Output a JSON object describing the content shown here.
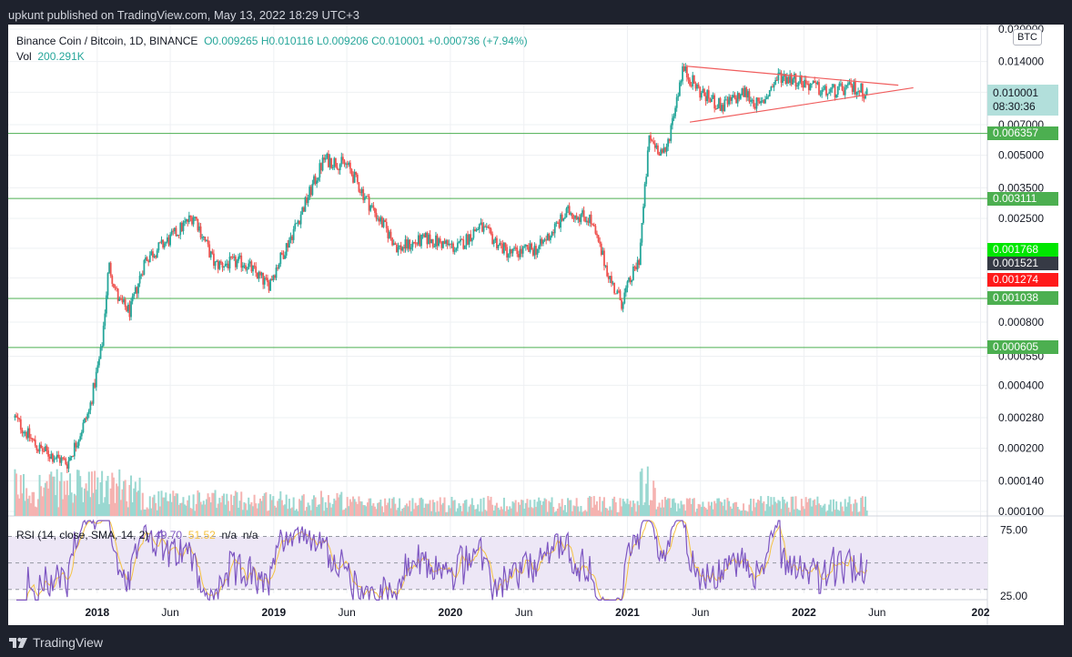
{
  "header": {
    "published_text": "upkunt published on TradingView.com, May 13, 2022 18:29 UTC+3"
  },
  "footer": {
    "brand": "TradingView"
  },
  "legend": {
    "symbol": "Binance Coin / Bitcoin, 1D, BINANCE",
    "open": "O0.009265",
    "high": "H0.010116",
    "low": "L0.009206",
    "close": "C0.010001",
    "change": "+0.000736 (+7.94%)",
    "vol_label": "Vol",
    "vol_value": "200.291K"
  },
  "rsi_legend": {
    "label": "RSI (14, close, SMA, 14, 2)",
    "rsi_value": "49.70",
    "sma_value": "51.52",
    "na1": "n/a",
    "na2": "n/a"
  },
  "currency_badge": "BTC",
  "current_price": {
    "value": "0.010001",
    "countdown": "08:30:36"
  },
  "price_tags": [
    {
      "value": "0.006357",
      "color": "#4caf50"
    },
    {
      "value": "0.003111",
      "color": "#4caf50"
    },
    {
      "value": "0.001768",
      "color": "#00e600"
    },
    {
      "value": "0.001521",
      "color": "#363a45"
    },
    {
      "value": "0.001274",
      "color": "#ff1a1a"
    },
    {
      "value": "0.001038",
      "color": "#4caf50"
    },
    {
      "value": "0.000605",
      "color": "#4caf50"
    }
  ],
  "colors": {
    "up": "#26a69a",
    "down": "#ef5350",
    "level_line": "#4caf50",
    "trendline": "#f05d5d",
    "rsi": "#7e57c2",
    "rsi_sma": "#f5c242",
    "rsi_band": "#ede7f6"
  },
  "chart_data": [
    {
      "type": "candlestick",
      "title": "Binance Coin / Bitcoin, 1D, BINANCE",
      "y_scale": "log",
      "ylim": [
        0.0001,
        0.02
      ],
      "y_ticks": [
        "0.020000",
        "0.014000",
        "0.010000",
        "0.007000",
        "0.005000",
        "0.003500",
        "0.002500",
        "0.001800",
        "0.001300",
        "0.000800",
        "0.000550",
        "0.000400",
        "0.000280",
        "0.000200",
        "0.000140",
        "0.000100"
      ],
      "x_ticks": [
        "2018",
        "Jun",
        "2019",
        "Jun",
        "2020",
        "Jun",
        "2021",
        "Jun",
        "2022",
        "Jun",
        "202"
      ],
      "horizontal_levels": [
        0.006357,
        0.003111,
        0.001038,
        0.000605
      ],
      "approx_closes": [
        [
          "2017-07-15",
          0.00028
        ],
        [
          "2017-09-01",
          0.0002
        ],
        [
          "2017-11-01",
          0.00017
        ],
        [
          "2017-12-15",
          0.0003
        ],
        [
          "2018-01-10",
          0.0006
        ],
        [
          "2018-01-25",
          0.0015
        ],
        [
          "2018-02-15",
          0.001
        ],
        [
          "2018-03-10",
          0.0009
        ],
        [
          "2018-04-10",
          0.0016
        ],
        [
          "2018-06-01",
          0.002
        ],
        [
          "2018-07-20",
          0.0026
        ],
        [
          "2018-09-01",
          0.0015
        ],
        [
          "2018-11-01",
          0.00155
        ],
        [
          "2018-12-20",
          0.0012
        ],
        [
          "2019-02-15",
          0.0023
        ],
        [
          "2019-04-15",
          0.0048
        ],
        [
          "2019-06-01",
          0.0045
        ],
        [
          "2019-07-15",
          0.003
        ],
        [
          "2019-09-15",
          0.0018
        ],
        [
          "2019-11-15",
          0.002
        ],
        [
          "2020-01-15",
          0.0018
        ],
        [
          "2020-03-01",
          0.0023
        ],
        [
          "2020-05-01",
          0.0017
        ],
        [
          "2020-07-01",
          0.0018
        ],
        [
          "2020-09-01",
          0.0027
        ],
        [
          "2020-10-15",
          0.0025
        ],
        [
          "2020-12-01",
          0.0012
        ],
        [
          "2020-12-20",
          0.001
        ],
        [
          "2021-01-25",
          0.0016
        ],
        [
          "2021-02-15",
          0.006
        ],
        [
          "2021-03-20",
          0.005
        ],
        [
          "2021-04-25",
          0.013
        ],
        [
          "2021-06-01",
          0.01
        ],
        [
          "2021-07-15",
          0.0085
        ],
        [
          "2021-09-01",
          0.01
        ],
        [
          "2021-10-01",
          0.0085
        ],
        [
          "2021-11-10",
          0.012
        ],
        [
          "2021-12-20",
          0.0115
        ],
        [
          "2022-02-15",
          0.01
        ],
        [
          "2022-04-15",
          0.0105
        ],
        [
          "2022-05-13",
          0.01
        ]
      ],
      "trendlines": [
        {
          "name": "upper",
          "points": [
            [
              "2021-05-05",
              0.0133
            ],
            [
              "2022-07-15",
              0.0108
            ]
          ]
        },
        {
          "name": "lower",
          "points": [
            [
              "2021-05-10",
              0.0072
            ],
            [
              "2022-08-15",
              0.0105
            ]
          ]
        }
      ]
    },
    {
      "type": "line",
      "title": "RSI (14, close, SMA, 14, 2)",
      "ylim": [
        25,
        80
      ],
      "y_ticks": [
        "75.00",
        "25.00"
      ],
      "band": [
        30,
        70
      ],
      "series": [
        {
          "name": "RSI",
          "last": 49.7
        },
        {
          "name": "SMA",
          "last": 51.52
        }
      ]
    }
  ]
}
